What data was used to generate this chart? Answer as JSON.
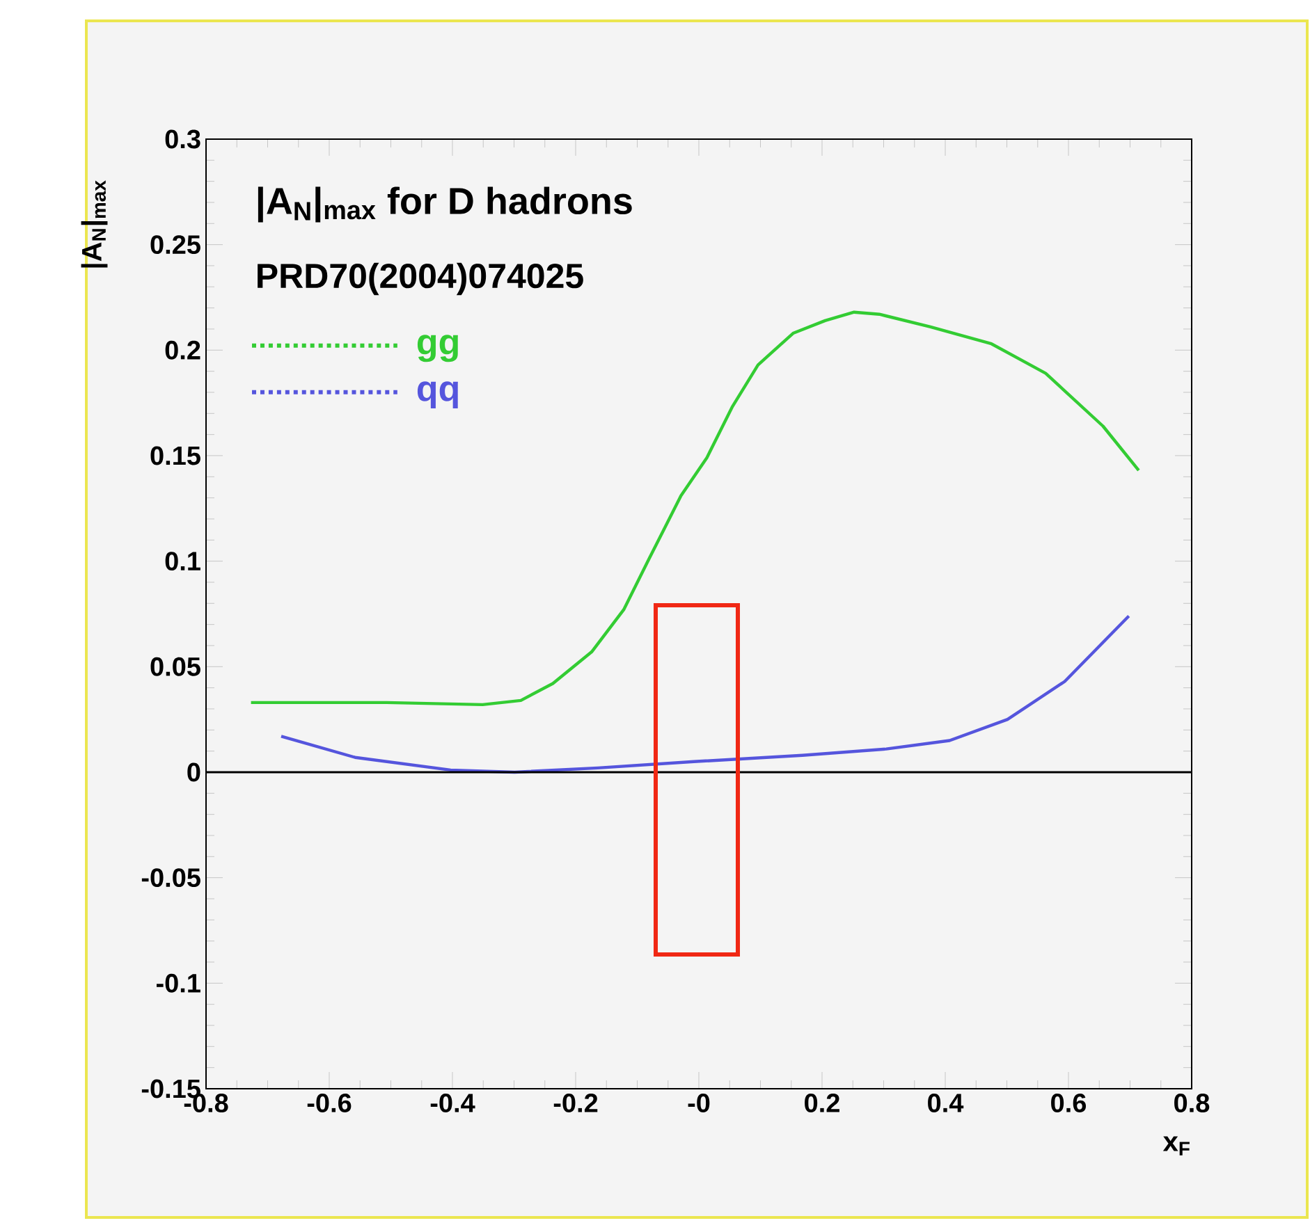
{
  "chart_data": {
    "type": "line",
    "title": "|A$_{N}$|$_{max}$ for D hadrons",
    "subtitle": "PRD70(2004)074025",
    "xlabel": "x$_{F}$",
    "ylabel": "|A$_{N}$|$_{max}$",
    "xlim": [
      -0.8,
      0.8
    ],
    "ylim": [
      -0.15,
      0.3
    ],
    "xticks": [
      -0.8,
      -0.6,
      -0.4,
      -0.2,
      {
        "value": 0,
        "label": "-0"
      },
      0.2,
      0.4,
      0.6,
      0.8
    ],
    "yticks": [
      -0.15,
      -0.1,
      -0.05,
      0,
      0.05,
      0.1,
      0.15,
      0.2,
      0.25,
      0.3
    ],
    "legend": "top left",
    "grid": false,
    "ref_lines": [
      {
        "axis": "y",
        "value": 0,
        "color": "#000000"
      }
    ],
    "series": [
      {
        "name": "gg",
        "color": "#33cc33",
        "x": [
          -0.727,
          -0.507,
          -0.351,
          -0.289,
          -0.237,
          -0.174,
          -0.122,
          -0.081,
          -0.029,
          0.013,
          0.054,
          0.096,
          0.153,
          0.205,
          0.252,
          0.293,
          0.376,
          0.475,
          0.563,
          0.656,
          0.714
        ],
        "values": [
          0.033,
          0.033,
          0.032,
          0.034,
          0.042,
          0.057,
          0.077,
          0.101,
          0.131,
          0.149,
          0.173,
          0.193,
          0.208,
          0.214,
          0.218,
          0.217,
          0.211,
          0.203,
          0.189,
          0.164,
          0.143
        ]
      },
      {
        "name": "qq",
        "color": "#5555dd",
        "x": [
          -0.678,
          -0.558,
          -0.403,
          -0.299,
          -0.164,
          -0.008,
          0.168,
          0.304,
          0.407,
          0.501,
          0.594,
          0.698
        ],
        "values": [
          0.017,
          0.007,
          0.001,
          0.0,
          0.002,
          0.005,
          0.008,
          0.011,
          0.015,
          0.025,
          0.043,
          0.074
        ]
      }
    ]
  }
}
